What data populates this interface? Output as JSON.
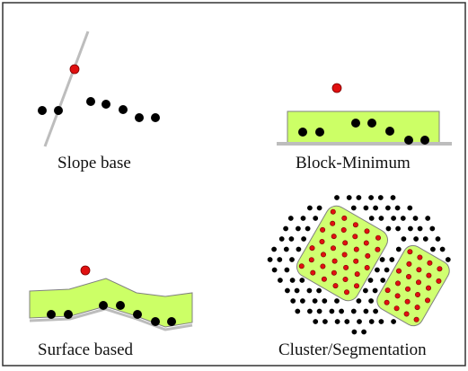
{
  "panels": {
    "slope": {
      "caption": "Slope base"
    },
    "block": {
      "caption": "Block-Minimum"
    },
    "surface": {
      "caption": "Surface based"
    },
    "cluster": {
      "caption": "Cluster/Segmentation"
    }
  },
  "colors": {
    "ground_point": "#000000",
    "query_point": "#e01010",
    "region_fill": "#ccff66",
    "ground_line": "#bdbdbd",
    "frame_border": "#333333"
  }
}
